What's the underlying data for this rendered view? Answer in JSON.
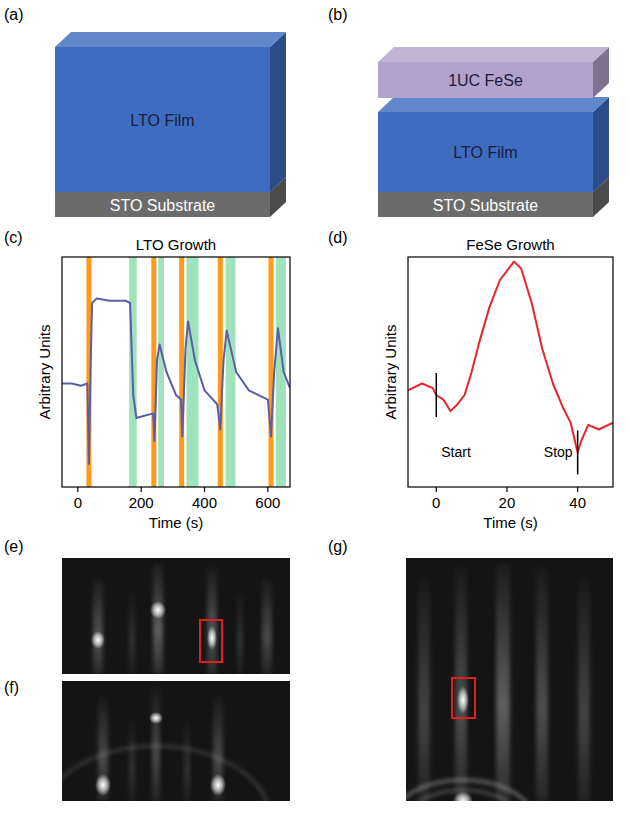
{
  "panel_labels": [
    "(a)",
    "(b)",
    "(c)",
    "(d)",
    "(e)",
    "(f)",
    "(g)"
  ],
  "diagrams": [
    {
      "layers": [
        {
          "label": "STO Substrate",
          "color": "#6b6b6b"
        },
        {
          "label": "LTO Film",
          "color": "#3d6cc0"
        }
      ]
    },
    {
      "layers": [
        {
          "label": "STO Substrate",
          "color": "#6b6b6b"
        },
        {
          "label": "LTO Film",
          "color": "#3d6cc0"
        },
        {
          "label": "1UC FeSe",
          "color": "#b2a3cc"
        }
      ]
    }
  ],
  "chart_data": [
    {
      "type": "line",
      "title": "LTO Growth",
      "x_label": "Time (s)",
      "y_label": "Arbitrary Units",
      "xlim": [
        -50,
        670
      ],
      "xticks": [
        0,
        200,
        400,
        600
      ],
      "ylim": [
        0,
        1
      ],
      "tick_labels": "x",
      "color": "#5b5ea6",
      "x": [
        -50,
        -20,
        10,
        30,
        35,
        40,
        45,
        60,
        100,
        150,
        165,
        175,
        185,
        210,
        238,
        242,
        250,
        258,
        280,
        310,
        326,
        330,
        340,
        348,
        370,
        400,
        440,
        450,
        460,
        470,
        500,
        540,
        600,
        610,
        620,
        632,
        650,
        670
      ],
      "values": [
        0.45,
        0.45,
        0.44,
        0.45,
        0.1,
        0.5,
        0.8,
        0.82,
        0.81,
        0.81,
        0.8,
        0.4,
        0.3,
        0.31,
        0.32,
        0.2,
        0.55,
        0.62,
        0.5,
        0.4,
        0.38,
        0.22,
        0.6,
        0.72,
        0.55,
        0.42,
        0.36,
        0.25,
        0.55,
        0.68,
        0.5,
        0.42,
        0.38,
        0.22,
        0.5,
        0.69,
        0.5,
        0.43
      ],
      "orange_lines": {
        "color": "#ff9a1a",
        "x": [
          35,
          240,
          328,
          450,
          610
        ]
      },
      "green_bands": {
        "color": "#9fe3bd",
        "x": [
          [
            162,
            186
          ],
          [
            254,
            272
          ],
          [
            343,
            381
          ],
          [
            467,
            498
          ],
          [
            625,
            657
          ]
        ]
      }
    },
    {
      "type": "line",
      "title": "FeSe Growth",
      "x_label": "Time (s)",
      "y_label": "Arbitrary Units",
      "xlim": [
        -8,
        50
      ],
      "xticks": [
        0,
        20,
        40
      ],
      "ylim": [
        0,
        1
      ],
      "tick_labels": "x",
      "color": "#e8252a",
      "x": [
        -8,
        -4,
        -1,
        0,
        2,
        4,
        6,
        8,
        10,
        12,
        15,
        18,
        20,
        22,
        24,
        27,
        30,
        33,
        36,
        38,
        40,
        41,
        43,
        46,
        50
      ],
      "values": [
        0.42,
        0.45,
        0.43,
        0.4,
        0.38,
        0.33,
        0.36,
        0.4,
        0.5,
        0.62,
        0.78,
        0.9,
        0.94,
        0.98,
        0.95,
        0.8,
        0.6,
        0.45,
        0.34,
        0.28,
        0.15,
        0.2,
        0.27,
        0.25,
        0.28
      ],
      "annotations": [
        {
          "x": 0,
          "text": "Start"
        },
        {
          "x": 40,
          "text": "Stop"
        }
      ]
    }
  ]
}
